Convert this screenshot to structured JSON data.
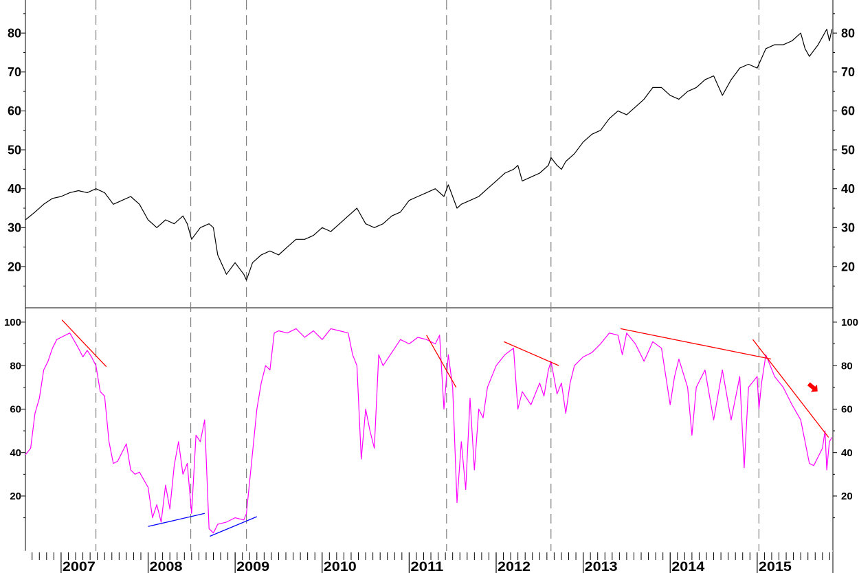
{
  "chart_data": [
    {
      "type": "line",
      "panel": "top",
      "xlim": [
        2006.59,
        2015.87
      ],
      "ylim": [
        9.4,
        88.5
      ],
      "yticks": [
        20,
        30,
        40,
        50,
        60,
        70,
        80
      ],
      "grid": false,
      "colors": {
        "line": "#000000"
      },
      "series": [
        {
          "values": [
            [
              2006.59,
              32
            ],
            [
              2006.7,
              34
            ],
            [
              2006.8,
              36
            ],
            [
              2006.9,
              37.5
            ],
            [
              2007.0,
              38
            ],
            [
              2007.1,
              39
            ],
            [
              2007.2,
              39.5
            ],
            [
              2007.3,
              39
            ],
            [
              2007.4,
              40
            ],
            [
              2007.5,
              39
            ],
            [
              2007.6,
              36
            ],
            [
              2007.7,
              37
            ],
            [
              2007.8,
              38
            ],
            [
              2007.9,
              36
            ],
            [
              2008.0,
              32
            ],
            [
              2008.1,
              30
            ],
            [
              2008.2,
              32
            ],
            [
              2008.3,
              31
            ],
            [
              2008.4,
              33
            ],
            [
              2008.45,
              31
            ],
            [
              2008.5,
              27
            ],
            [
              2008.6,
              30
            ],
            [
              2008.7,
              31
            ],
            [
              2008.75,
              30
            ],
            [
              2008.8,
              23
            ],
            [
              2008.9,
              18
            ],
            [
              2009.0,
              21
            ],
            [
              2009.1,
              18
            ],
            [
              2009.13,
              16.5
            ],
            [
              2009.2,
              21
            ],
            [
              2009.3,
              23
            ],
            [
              2009.4,
              24
            ],
            [
              2009.5,
              23
            ],
            [
              2009.6,
              25
            ],
            [
              2009.7,
              27
            ],
            [
              2009.8,
              27
            ],
            [
              2009.9,
              28
            ],
            [
              2010.0,
              30
            ],
            [
              2010.1,
              29
            ],
            [
              2010.2,
              31
            ],
            [
              2010.3,
              33
            ],
            [
              2010.4,
              35
            ],
            [
              2010.5,
              31
            ],
            [
              2010.6,
              30
            ],
            [
              2010.7,
              31
            ],
            [
              2010.8,
              33
            ],
            [
              2010.9,
              34
            ],
            [
              2011.0,
              37
            ],
            [
              2011.1,
              38
            ],
            [
              2011.2,
              39
            ],
            [
              2011.3,
              40
            ],
            [
              2011.4,
              38
            ],
            [
              2011.45,
              41
            ],
            [
              2011.55,
              35
            ],
            [
              2011.6,
              36
            ],
            [
              2011.7,
              37
            ],
            [
              2011.8,
              38
            ],
            [
              2011.9,
              40
            ],
            [
              2012.0,
              42
            ],
            [
              2012.1,
              44
            ],
            [
              2012.2,
              45
            ],
            [
              2012.25,
              46
            ],
            [
              2012.3,
              42
            ],
            [
              2012.4,
              43
            ],
            [
              2012.5,
              44
            ],
            [
              2012.6,
              46
            ],
            [
              2012.63,
              48
            ],
            [
              2012.7,
              46
            ],
            [
              2012.75,
              45
            ],
            [
              2012.8,
              47
            ],
            [
              2012.9,
              49
            ],
            [
              2013.0,
              52
            ],
            [
              2013.1,
              54
            ],
            [
              2013.2,
              55
            ],
            [
              2013.3,
              58
            ],
            [
              2013.4,
              60
            ],
            [
              2013.5,
              59
            ],
            [
              2013.6,
              61
            ],
            [
              2013.7,
              63
            ],
            [
              2013.8,
              66
            ],
            [
              2013.9,
              66
            ],
            [
              2014.0,
              64
            ],
            [
              2014.1,
              63
            ],
            [
              2014.2,
              65
            ],
            [
              2014.3,
              66
            ],
            [
              2014.4,
              68
            ],
            [
              2014.5,
              69
            ],
            [
              2014.6,
              64
            ],
            [
              2014.7,
              68
            ],
            [
              2014.8,
              71
            ],
            [
              2014.9,
              72
            ],
            [
              2015.0,
              71
            ],
            [
              2015.1,
              76
            ],
            [
              2015.2,
              77
            ],
            [
              2015.3,
              77
            ],
            [
              2015.4,
              78
            ],
            [
              2015.5,
              80
            ],
            [
              2015.55,
              76
            ],
            [
              2015.6,
              74
            ],
            [
              2015.7,
              77
            ],
            [
              2015.75,
              79
            ],
            [
              2015.8,
              81
            ],
            [
              2015.83,
              78
            ],
            [
              2015.86,
              81
            ]
          ]
        }
      ]
    },
    {
      "type": "line",
      "panel": "bottom",
      "xlim": [
        2006.59,
        2015.87
      ],
      "ylim": [
        -5.3,
        106.6
      ],
      "yticks": [
        20,
        40,
        60,
        80,
        100
      ],
      "grid": false,
      "colors": {
        "line": "#ff00ff",
        "resistance": "#ff0000",
        "support": "#0000ff",
        "arrow": "#ff0000"
      },
      "series": [
        {
          "values": [
            [
              2006.59,
              39
            ],
            [
              2006.65,
              42
            ],
            [
              2006.7,
              58
            ],
            [
              2006.75,
              65
            ],
            [
              2006.8,
              78
            ],
            [
              2006.85,
              82
            ],
            [
              2006.9,
              88
            ],
            [
              2006.95,
              92
            ],
            [
              2007.0,
              93
            ],
            [
              2007.1,
              95
            ],
            [
              2007.2,
              88
            ],
            [
              2007.25,
              84
            ],
            [
              2007.3,
              87
            ],
            [
              2007.35,
              84
            ],
            [
              2007.4,
              80
            ],
            [
              2007.45,
              68
            ],
            [
              2007.5,
              66
            ],
            [
              2007.55,
              45
            ],
            [
              2007.6,
              35
            ],
            [
              2007.65,
              36
            ],
            [
              2007.7,
              40
            ],
            [
              2007.75,
              44
            ],
            [
              2007.8,
              32
            ],
            [
              2007.85,
              30
            ],
            [
              2007.9,
              31
            ],
            [
              2008.0,
              24
            ],
            [
              2008.05,
              10
            ],
            [
              2008.1,
              16
            ],
            [
              2008.15,
              8
            ],
            [
              2008.2,
              25
            ],
            [
              2008.25,
              14
            ],
            [
              2008.3,
              34
            ],
            [
              2008.35,
              45
            ],
            [
              2008.4,
              30
            ],
            [
              2008.45,
              35
            ],
            [
              2008.5,
              12
            ],
            [
              2008.55,
              48
            ],
            [
              2008.6,
              45
            ],
            [
              2008.65,
              55
            ],
            [
              2008.7,
              5
            ],
            [
              2008.75,
              3
            ],
            [
              2008.8,
              7
            ],
            [
              2008.9,
              8
            ],
            [
              2009.0,
              10
            ],
            [
              2009.1,
              9
            ],
            [
              2009.13,
              12
            ],
            [
              2009.2,
              40
            ],
            [
              2009.25,
              60
            ],
            [
              2009.3,
              72
            ],
            [
              2009.35,
              80
            ],
            [
              2009.4,
              78
            ],
            [
              2009.45,
              95
            ],
            [
              2009.5,
              96
            ],
            [
              2009.6,
              95
            ],
            [
              2009.7,
              97
            ],
            [
              2009.8,
              93
            ],
            [
              2009.9,
              96
            ],
            [
              2010.0,
              92
            ],
            [
              2010.1,
              97
            ],
            [
              2010.2,
              96
            ],
            [
              2010.3,
              95
            ],
            [
              2010.35,
              85
            ],
            [
              2010.4,
              80
            ],
            [
              2010.45,
              37
            ],
            [
              2010.5,
              60
            ],
            [
              2010.55,
              50
            ],
            [
              2010.6,
              42
            ],
            [
              2010.65,
              85
            ],
            [
              2010.7,
              80
            ],
            [
              2010.8,
              86
            ],
            [
              2010.9,
              92
            ],
            [
              2011.0,
              90
            ],
            [
              2011.1,
              93
            ],
            [
              2011.2,
              92
            ],
            [
              2011.3,
              90
            ],
            [
              2011.35,
              94
            ],
            [
              2011.4,
              60
            ],
            [
              2011.45,
              85
            ],
            [
              2011.5,
              70
            ],
            [
              2011.55,
              17
            ],
            [
              2011.6,
              45
            ],
            [
              2011.65,
              23
            ],
            [
              2011.7,
              65
            ],
            [
              2011.75,
              32
            ],
            [
              2011.8,
              60
            ],
            [
              2011.85,
              56
            ],
            [
              2011.9,
              70
            ],
            [
              2012.0,
              80
            ],
            [
              2012.1,
              85
            ],
            [
              2012.2,
              88
            ],
            [
              2012.25,
              60
            ],
            [
              2012.3,
              68
            ],
            [
              2012.4,
              62
            ],
            [
              2012.5,
              72
            ],
            [
              2012.55,
              66
            ],
            [
              2012.6,
              78
            ],
            [
              2012.63,
              82
            ],
            [
              2012.7,
              67
            ],
            [
              2012.75,
              72
            ],
            [
              2012.8,
              58
            ],
            [
              2012.85,
              72
            ],
            [
              2012.9,
              80
            ],
            [
              2013.0,
              84
            ],
            [
              2013.1,
              86
            ],
            [
              2013.2,
              90
            ],
            [
              2013.3,
              95
            ],
            [
              2013.4,
              94
            ],
            [
              2013.45,
              85
            ],
            [
              2013.5,
              95
            ],
            [
              2013.6,
              90
            ],
            [
              2013.7,
              82
            ],
            [
              2013.8,
              91
            ],
            [
              2013.9,
              88
            ],
            [
              2014.0,
              62
            ],
            [
              2014.05,
              75
            ],
            [
              2014.1,
              83
            ],
            [
              2014.2,
              70
            ],
            [
              2014.25,
              48
            ],
            [
              2014.3,
              70
            ],
            [
              2014.4,
              78
            ],
            [
              2014.5,
              55
            ],
            [
              2014.6,
              78
            ],
            [
              2014.7,
              55
            ],
            [
              2014.8,
              75
            ],
            [
              2014.85,
              33
            ],
            [
              2014.9,
              70
            ],
            [
              2015.0,
              75
            ],
            [
              2015.02,
              60
            ],
            [
              2015.05,
              72
            ],
            [
              2015.1,
              85
            ],
            [
              2015.15,
              80
            ],
            [
              2015.2,
              75
            ],
            [
              2015.3,
              70
            ],
            [
              2015.4,
              62
            ],
            [
              2015.5,
              55
            ],
            [
              2015.55,
              45
            ],
            [
              2015.6,
              35
            ],
            [
              2015.65,
              34
            ],
            [
              2015.7,
              38
            ],
            [
              2015.75,
              42
            ],
            [
              2015.78,
              50
            ],
            [
              2015.8,
              32
            ],
            [
              2015.83,
              45
            ],
            [
              2015.86,
              47
            ]
          ]
        }
      ],
      "trendlines": [
        {
          "kind": "resistance",
          "from": [
            2007.01,
            101
          ],
          "to": [
            2007.52,
            79.5
          ]
        },
        {
          "kind": "resistance",
          "from": [
            2011.2,
            94
          ],
          "to": [
            2011.54,
            70
          ]
        },
        {
          "kind": "resistance",
          "from": [
            2012.09,
            91
          ],
          "to": [
            2012.72,
            80
          ]
        },
        {
          "kind": "resistance",
          "from": [
            2013.43,
            97
          ],
          "to": [
            2015.16,
            83
          ]
        },
        {
          "kind": "resistance",
          "from": [
            2014.95,
            92
          ],
          "to": [
            2015.82,
            47
          ]
        },
        {
          "kind": "support",
          "from": [
            2008.0,
            6
          ],
          "to": [
            2008.65,
            12
          ]
        },
        {
          "kind": "support",
          "from": [
            2008.71,
            1.5
          ],
          "to": [
            2009.25,
            10.5
          ]
        }
      ],
      "annotations": [
        {
          "icon": "down-right-arrow-icon",
          "at": [
            2015.64,
            70
          ]
        }
      ]
    }
  ],
  "x_axis": {
    "tick_labels": [
      "2007",
      "2008",
      "2009",
      "2010",
      "2011",
      "2012",
      "2013",
      "2014",
      "2015"
    ],
    "minor_ticks": "monthly"
  },
  "vertical_markers": [
    2007.4,
    2008.49,
    2009.13,
    2011.43,
    2012.63,
    2015.02
  ]
}
